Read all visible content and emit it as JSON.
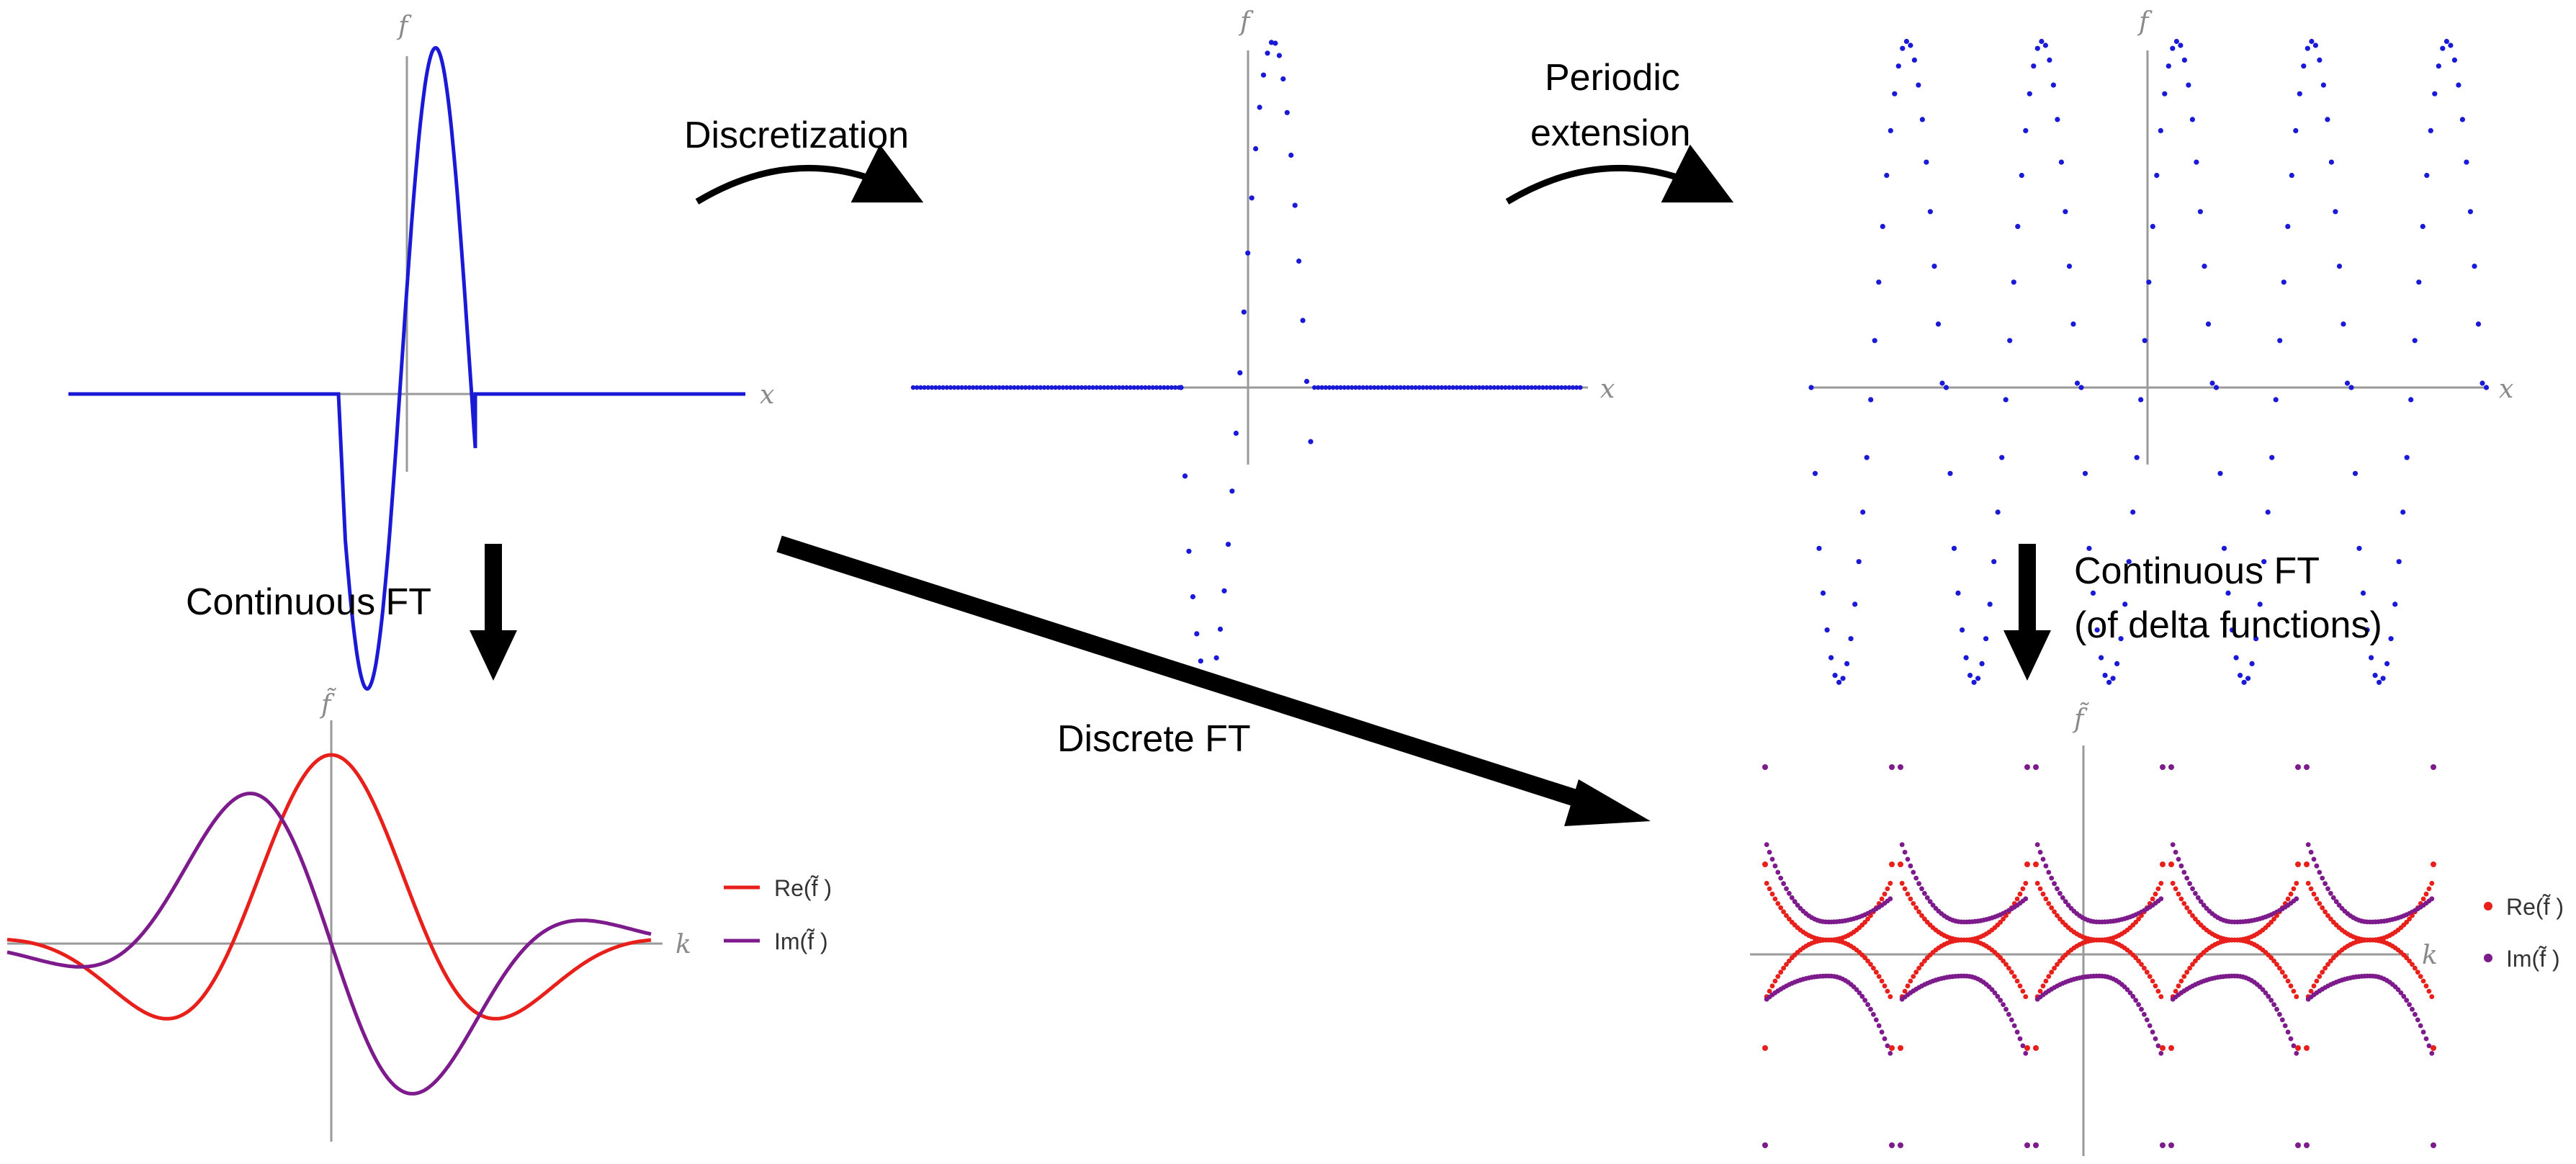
{
  "labels": {
    "discretization": "Discretization",
    "periodic_extension_line1": "Periodic",
    "periodic_extension_line2": "extension",
    "continuous_ft": "Continuous FT",
    "continuous_ft_delta_line1": "Continuous FT",
    "continuous_ft_delta_line2": "(of delta functions)",
    "discrete_ft": "Discrete FT"
  },
  "axes": {
    "f": "f",
    "x": "x",
    "f_tilde": "f̃",
    "k": "k"
  },
  "legend": {
    "re": "Re(f̃ )",
    "im": "Im(f̃ )"
  },
  "colors": {
    "blue": "#1a1ad6",
    "red": "#e8201c",
    "purple": "#7d1a8c",
    "arrow": "#000000",
    "axis": "#9a9a9a"
  }
}
